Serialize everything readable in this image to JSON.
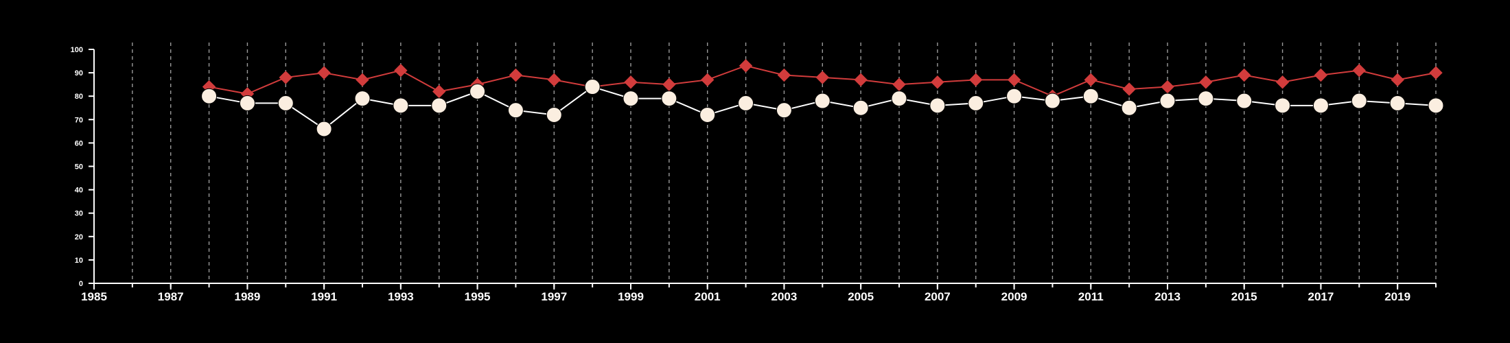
{
  "chart_data": {
    "type": "line",
    "title": "",
    "xlabel": "",
    "ylabel": "",
    "xlim": [
      1985,
      2020
    ],
    "ylim": [
      0,
      100
    ],
    "x_ticks": [
      "1985",
      "1987",
      "1989",
      "1991",
      "1993",
      "1995",
      "1997",
      "1999",
      "2001",
      "2003",
      "2005",
      "2007",
      "2009",
      "2011",
      "2013",
      "2015",
      "2017",
      "2019"
    ],
    "y_ticks": [
      "0",
      "10",
      "20",
      "30",
      "40",
      "50",
      "60",
      "70",
      "80",
      "90",
      "100"
    ],
    "grid": "vertical dashed lines at each year",
    "legend": "none",
    "background": "#000000",
    "axis_color": "#ffffff",
    "grid_color": "#9a9a9a",
    "x": [
      1988,
      1989,
      1990,
      1991,
      1992,
      1993,
      1994,
      1995,
      1996,
      1997,
      1998,
      1999,
      2000,
      2001,
      2002,
      2003,
      2004,
      2005,
      2006,
      2007,
      2008,
      2009,
      2010,
      2011,
      2012,
      2013,
      2014,
      2015,
      2016,
      2017,
      2018,
      2019,
      2020
    ],
    "series": [
      {
        "marker": "diamond",
        "color": "#d23c3c",
        "line_color": "#d23c3c",
        "values": [
          84,
          81,
          88,
          90,
          87,
          91,
          82,
          85,
          89,
          87,
          84,
          86,
          85,
          87,
          93,
          89,
          88,
          87,
          85,
          86,
          87,
          87,
          80,
          87,
          83,
          84,
          86,
          89,
          86,
          89,
          91,
          87,
          90
        ]
      },
      {
        "marker": "circle",
        "color": "#fbeee0",
        "line_color": "#ffffff",
        "values": [
          80,
          77,
          77,
          66,
          79,
          76,
          76,
          82,
          74,
          72,
          84,
          79,
          79,
          72,
          77,
          74,
          78,
          75,
          79,
          76,
          77,
          80,
          78,
          80,
          75,
          78,
          79,
          78,
          76,
          76,
          78,
          77,
          76
        ]
      }
    ]
  }
}
